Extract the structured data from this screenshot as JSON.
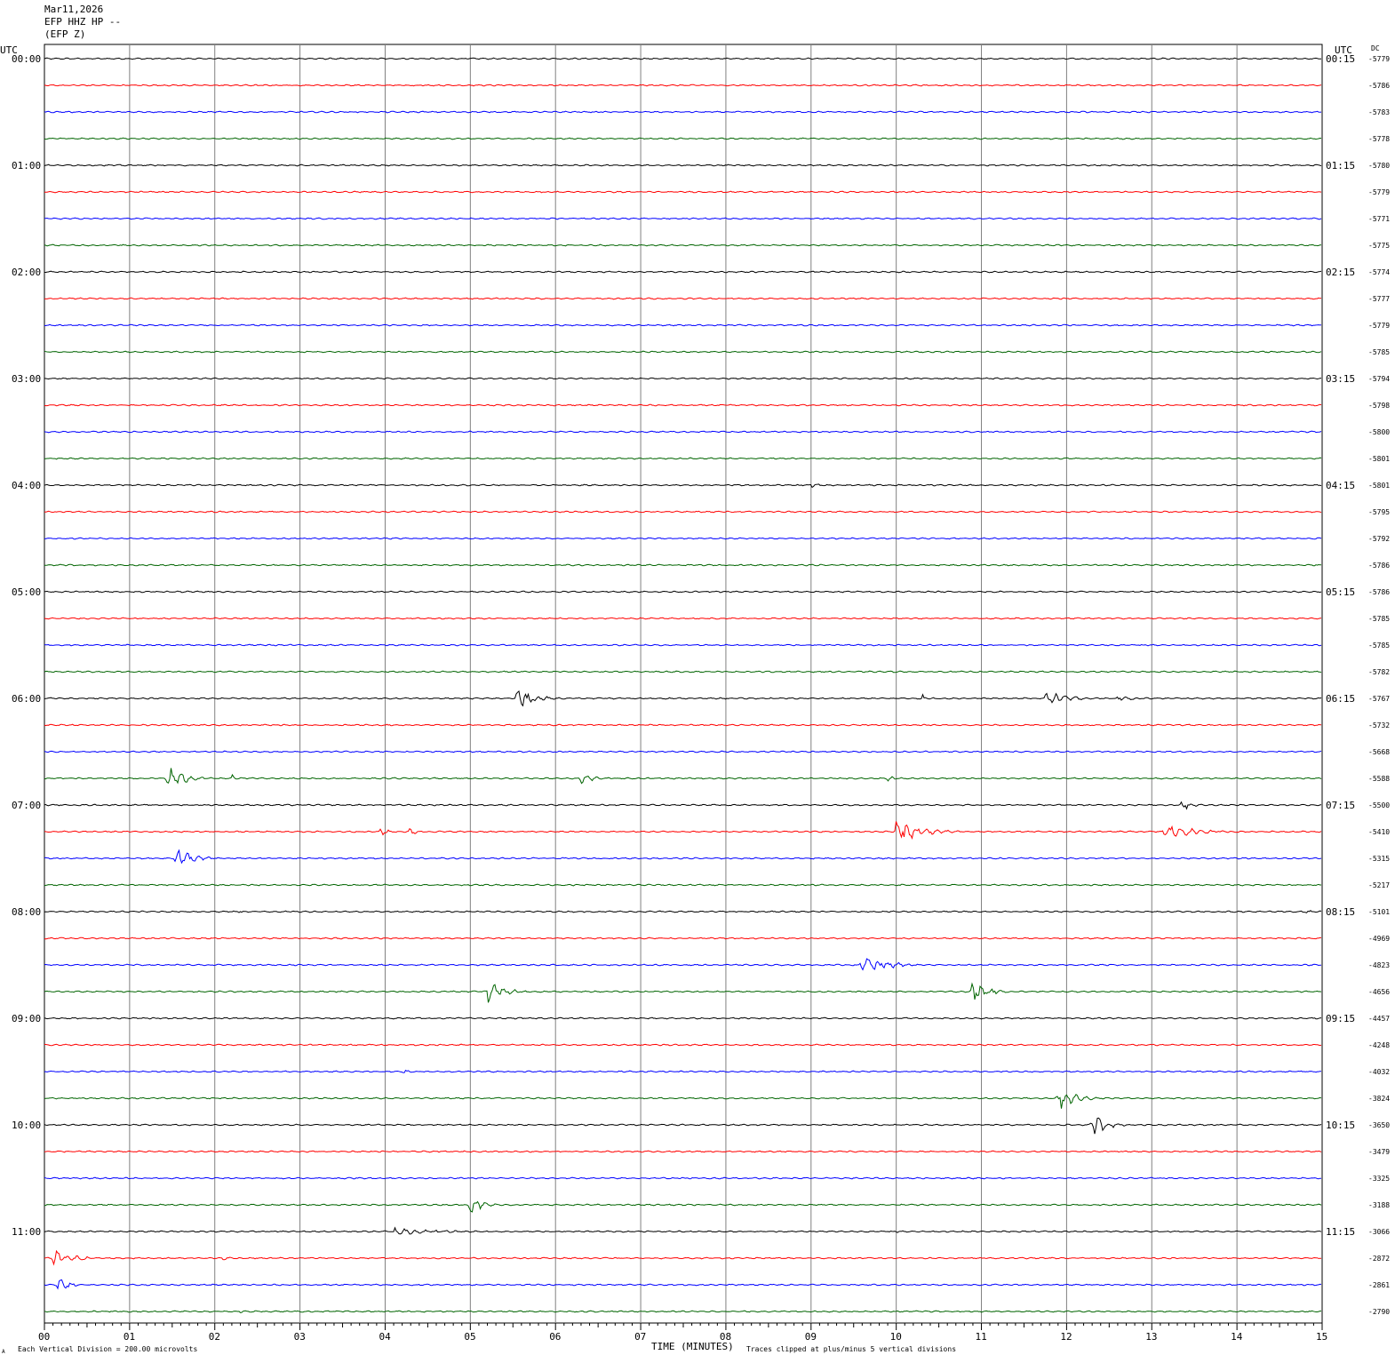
{
  "header": {
    "date": "Mar11,2026",
    "station": "EFP HHZ HP --",
    "channel": "(EFP Z)"
  },
  "axis_labels": {
    "left_tz": "UTC",
    "right_tz": "UTC",
    "dc": "DC",
    "x_title": "TIME (MINUTES)",
    "scale_note": "Each Vertical Division =  200.00 microvolts",
    "clip_note": "Traces clipped at plus/minus 5 vertical divisions",
    "corner_mark": "A"
  },
  "colors": {
    "black": "#000000",
    "red": "#ff0000",
    "blue": "#0000ff",
    "green": "#006400",
    "grid": "#808080"
  },
  "chart_data": {
    "type": "line",
    "x_range": [
      0,
      15
    ],
    "x_ticks": [
      "00",
      "01",
      "02",
      "03",
      "04",
      "05",
      "06",
      "07",
      "08",
      "09",
      "10",
      "11",
      "12",
      "13",
      "14",
      "15"
    ],
    "trace_interval_minutes": 15,
    "left_hour_labels": [
      "00:00",
      "01:00",
      "02:00",
      "03:00",
      "04:00",
      "05:00",
      "06:00",
      "07:00",
      "08:00",
      "09:00",
      "10:00",
      "11:00"
    ],
    "right_hour_labels": [
      "00:15",
      "01:15",
      "02:15",
      "03:15",
      "04:15",
      "05:15",
      "06:15",
      "07:15",
      "08:15",
      "09:15",
      "10:15",
      "11:15"
    ],
    "trace_color_cycle": [
      "black",
      "red",
      "blue",
      "green"
    ],
    "dc_offsets": [
      "-5779",
      "-5786",
      "-5783",
      "-5778",
      "-5780",
      "-5779",
      "-5771",
      "-5775",
      "-5774",
      "-5777",
      "-5779",
      "-5785",
      "-5794",
      "-5798",
      "-5800",
      "-5801",
      "-5801",
      "-5795",
      "-5792",
      "-5786",
      "-5786",
      "-5785",
      "-5785",
      "-5782",
      "-5767",
      "-5732",
      "-5668",
      "-5588",
      "-5500",
      "-5410",
      "-5315",
      "-5217",
      "-5101",
      "-4969",
      "-4823",
      "-4656",
      "-4457",
      "-4248",
      "-4032",
      "-3824",
      "-3650",
      "-3479",
      "-3325",
      "-3188",
      "-3066",
      "-2872",
      "-2861",
      "-2790"
    ],
    "events": [
      {
        "trace": 0,
        "minute": 11.6,
        "amp": 0.4,
        "dur": 0.15
      },
      {
        "trace": 1,
        "minute": 2.1,
        "amp": 0.35,
        "dur": 0.3
      },
      {
        "trace": 4,
        "minute": 4.6,
        "amp": 0.35,
        "dur": 0.15
      },
      {
        "trace": 6,
        "minute": 10.2,
        "amp": 0.35,
        "dur": 0.15
      },
      {
        "trace": 9,
        "minute": 10.3,
        "amp": 0.5,
        "dur": 0.15
      },
      {
        "trace": 16,
        "minute": 9.0,
        "amp": 1.0,
        "dur": 0.35
      },
      {
        "trace": 17,
        "minute": 3.8,
        "amp": 0.3,
        "dur": 1.0
      },
      {
        "trace": 17,
        "minute": 7.9,
        "amp": 0.4,
        "dur": 0.4
      },
      {
        "trace": 20,
        "minute": 4.8,
        "amp": 0.3,
        "dur": 0.3
      },
      {
        "trace": 24,
        "minute": 5.55,
        "amp": 5,
        "dur": 0.6
      },
      {
        "trace": 24,
        "minute": 10.3,
        "amp": 2.0,
        "dur": 0.2
      },
      {
        "trace": 24,
        "minute": 11.75,
        "amp": 5,
        "dur": 0.6
      },
      {
        "trace": 24,
        "minute": 12.6,
        "amp": 0.8,
        "dur": 1.3
      },
      {
        "trace": 26,
        "minute": 8.0,
        "amp": 0.3,
        "dur": 0.5
      },
      {
        "trace": 27,
        "minute": 1.45,
        "amp": 5,
        "dur": 0.6
      },
      {
        "trace": 27,
        "minute": 2.2,
        "amp": 1.6,
        "dur": 0.15
      },
      {
        "trace": 27,
        "minute": 6.3,
        "amp": 2.2,
        "dur": 0.5
      },
      {
        "trace": 27,
        "minute": 9.9,
        "amp": 1.3,
        "dur": 0.3
      },
      {
        "trace": 28,
        "minute": 13.35,
        "amp": 3.0,
        "dur": 0.3
      },
      {
        "trace": 29,
        "minute": 3.95,
        "amp": 2.0,
        "dur": 0.25
      },
      {
        "trace": 29,
        "minute": 4.3,
        "amp": 2.0,
        "dur": 0.2
      },
      {
        "trace": 29,
        "minute": 10.0,
        "amp": 5,
        "dur": 0.9
      },
      {
        "trace": 29,
        "minute": 13.15,
        "amp": 3.0,
        "dur": 1.2
      },
      {
        "trace": 30,
        "minute": 1.55,
        "amp": 5,
        "dur": 0.6
      },
      {
        "trace": 31,
        "minute": 6.2,
        "amp": 0.4,
        "dur": 0.4
      },
      {
        "trace": 32,
        "minute": 2.3,
        "amp": 1.0,
        "dur": 0.15
      },
      {
        "trace": 32,
        "minute": 14.8,
        "amp": 1.2,
        "dur": 0.2
      },
      {
        "trace": 33,
        "minute": 4.5,
        "amp": 0.5,
        "dur": 0.2
      },
      {
        "trace": 33,
        "minute": 8.1,
        "amp": 0.4,
        "dur": 0.4
      },
      {
        "trace": 34,
        "minute": 9.6,
        "amp": 5,
        "dur": 0.8
      },
      {
        "trace": 34,
        "minute": 1.0,
        "amp": 0.4,
        "dur": 0.3
      },
      {
        "trace": 35,
        "minute": 5.2,
        "amp": 5,
        "dur": 0.6
      },
      {
        "trace": 35,
        "minute": 10.9,
        "amp": 5,
        "dur": 0.5
      },
      {
        "trace": 38,
        "minute": 4.2,
        "amp": 2.0,
        "dur": 0.2
      },
      {
        "trace": 39,
        "minute": 11.9,
        "amp": 5,
        "dur": 0.6
      },
      {
        "trace": 40,
        "minute": 12.3,
        "amp": 5,
        "dur": 0.5
      },
      {
        "trace": 43,
        "minute": 5.0,
        "amp": 4.5,
        "dur": 0.4
      },
      {
        "trace": 44,
        "minute": 4.1,
        "amp": 1.6,
        "dur": 1.9
      },
      {
        "trace": 44,
        "minute": 10.0,
        "amp": 0.5,
        "dur": 0.4
      },
      {
        "trace": 44,
        "minute": 13.8,
        "amp": 0.4,
        "dur": 0.3
      },
      {
        "trace": 45,
        "minute": 0.1,
        "amp": 5,
        "dur": 0.6
      },
      {
        "trace": 45,
        "minute": 2.1,
        "amp": 1.0,
        "dur": 0.3
      },
      {
        "trace": 46,
        "minute": 0.15,
        "amp": 5,
        "dur": 0.3
      },
      {
        "trace": 47,
        "minute": 2.3,
        "amp": 0.6,
        "dur": 0.2
      }
    ]
  }
}
